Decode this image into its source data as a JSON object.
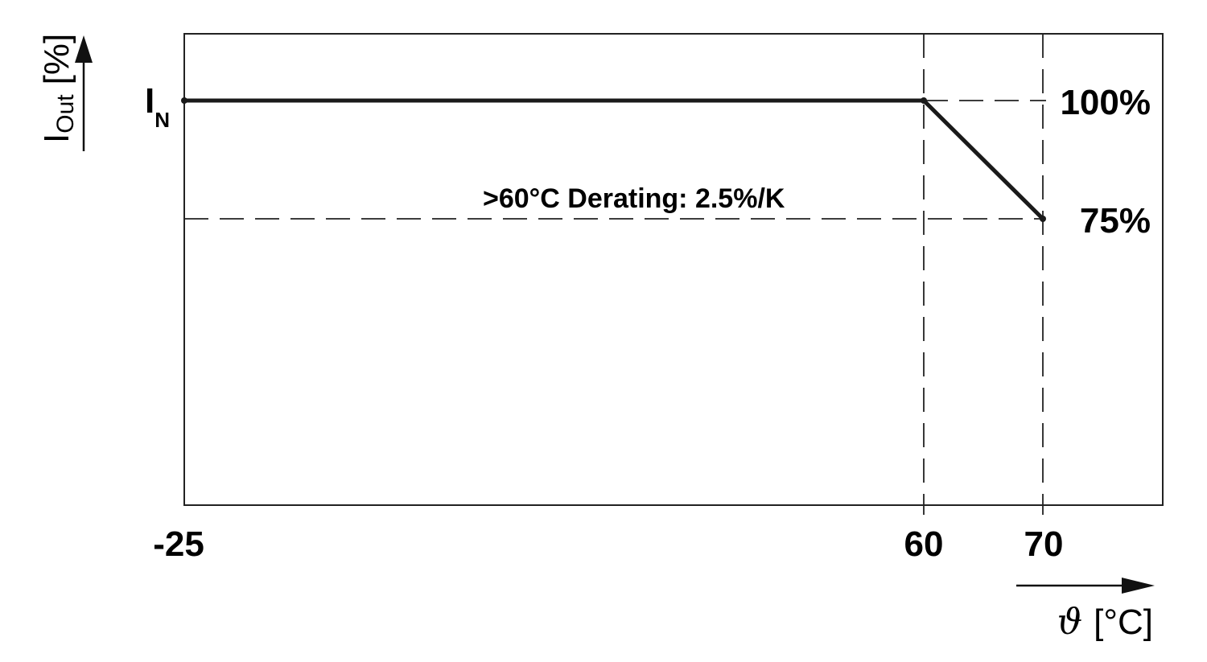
{
  "chart_data": {
    "type": "line",
    "title": "",
    "xlabel": {
      "symbol": "ϑ",
      "unit": "[°C]"
    },
    "ylabel": {
      "main": "I",
      "sub": "Out",
      "unit": "[%]"
    },
    "x_ticks": [
      "-25",
      "60",
      "70"
    ],
    "y_marker": {
      "main": "I",
      "sub": "N"
    },
    "right_labels": [
      "100%",
      "75%"
    ],
    "annotation": ">60°C Derating: 2.5%/K",
    "series": [
      {
        "x": [
          -25,
          60,
          70
        ],
        "y": [
          100,
          100,
          75
        ]
      }
    ],
    "reference_lines": {
      "x": [
        60,
        70
      ],
      "y": [
        100,
        75
      ]
    },
    "grid": false,
    "line_color": "#1a1a1a"
  }
}
